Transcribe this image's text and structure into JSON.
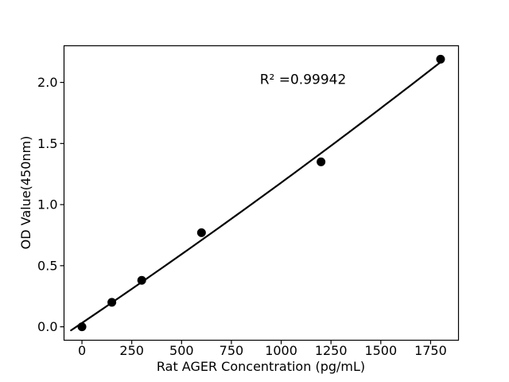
{
  "figure": {
    "background": "#ffffff"
  },
  "chart_data": {
    "type": "scatter",
    "title": "",
    "xlabel": "Rat AGER Concentration (pg/mL)",
    "ylabel": "OD Value(450nm)",
    "annotation": "R² =0.99942",
    "x": [
      0,
      150,
      300,
      600,
      1200,
      1800
    ],
    "y": [
      0.0,
      0.2,
      0.38,
      0.77,
      1.35,
      2.19
    ],
    "fit": {
      "type": "quadratic",
      "x_start": -55,
      "x_end": 1800
    },
    "xlim": [
      -90,
      1890
    ],
    "ylim": [
      -0.11,
      2.3
    ],
    "x_ticks": {
      "values": [
        0,
        250,
        500,
        750,
        1000,
        1250,
        1500,
        1750
      ],
      "labels": [
        "0",
        "250",
        "500",
        "750",
        "1000",
        "1250",
        "1500",
        "1750"
      ]
    },
    "y_ticks": {
      "values": [
        0,
        0.5,
        1.0,
        1.5,
        2.0
      ],
      "labels": [
        "0.0",
        "0.5",
        "1.0",
        "1.5",
        "2.0"
      ]
    },
    "grid": false,
    "legend": null,
    "colors": {
      "marker": "#000000",
      "line": "#000000",
      "text": "#000000",
      "spine": "#000000",
      "background": "#ffffff"
    }
  }
}
